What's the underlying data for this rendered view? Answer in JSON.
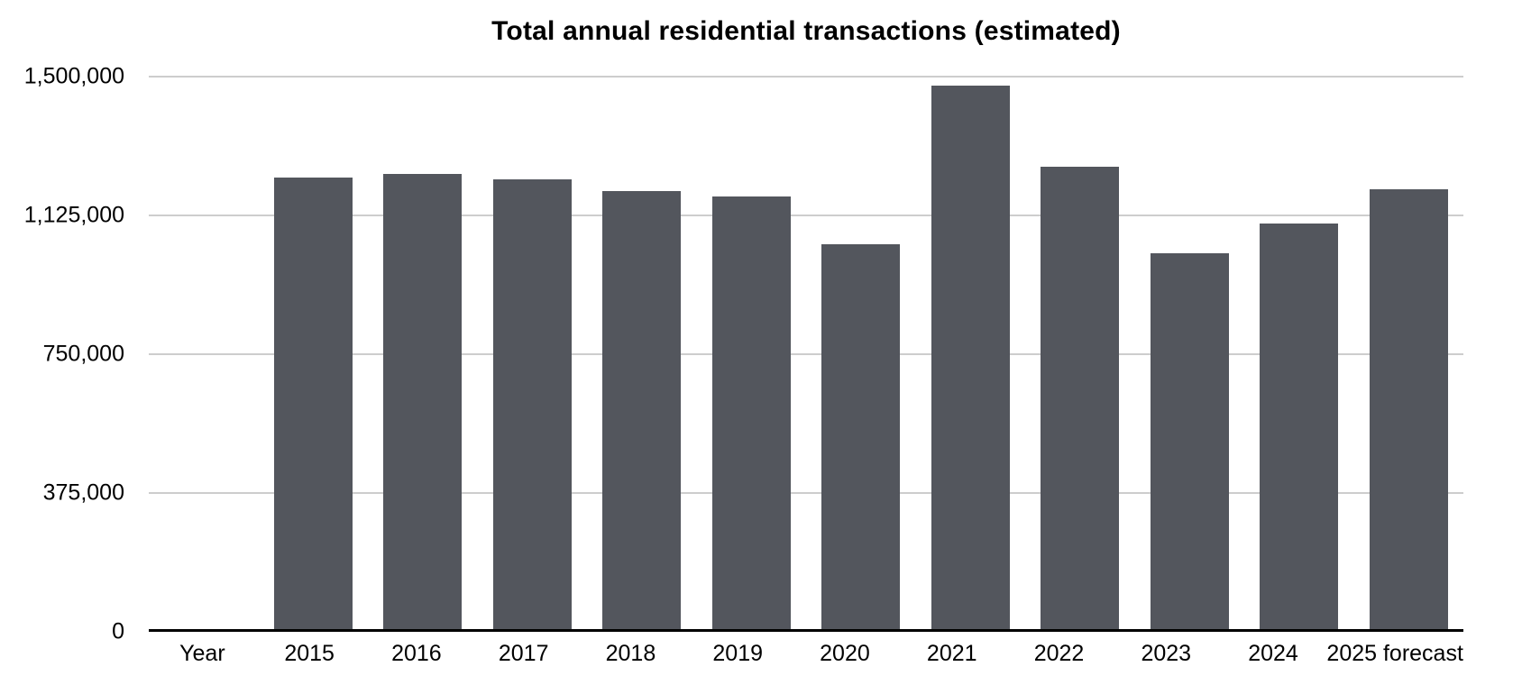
{
  "chart_data": {
    "type": "bar",
    "title": "Total annual residential transactions (estimated)",
    "categories": [
      "Year",
      "2015",
      "2016",
      "2017",
      "2018",
      "2019",
      "2020",
      "2021",
      "2022",
      "2023",
      "2024",
      "2025 forecast"
    ],
    "values": [
      null,
      1225000,
      1235000,
      1220000,
      1190000,
      1175000,
      1045000,
      1475000,
      1255000,
      1020000,
      1100000,
      1195000
    ],
    "xlabel": "",
    "ylabel": "",
    "ylim": [
      0,
      1500000
    ],
    "y_ticks": [
      {
        "value": 1500000,
        "label": "1,500,000"
      },
      {
        "value": 1125000,
        "label": "1,125,000"
      },
      {
        "value": 750000,
        "label": "750,000"
      },
      {
        "value": 375000,
        "label": "375,000"
      },
      {
        "value": 0,
        "label": "0"
      }
    ],
    "grid": "horizontal",
    "legend_position": "none"
  },
  "style": {
    "bar_color": "#53565d",
    "gridline_color": "#cdcdcd",
    "axis_line_color": "#000000",
    "text_color": "#000000",
    "background_color": "#ffffff"
  }
}
